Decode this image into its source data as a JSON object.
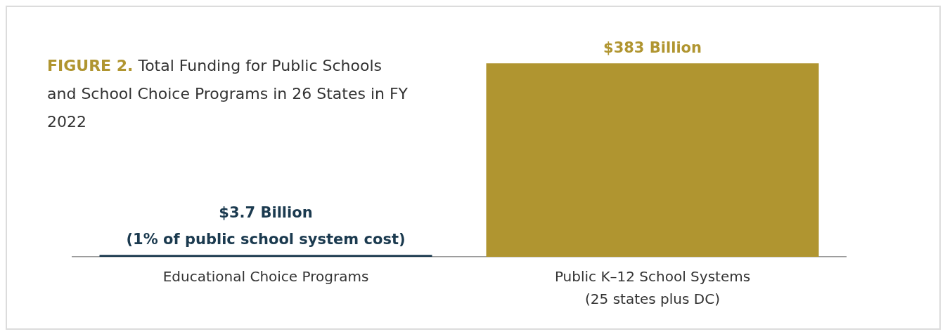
{
  "chart_data": {
    "type": "bar",
    "title": "FIGURE 2.",
    "subtitle": "Total Funding for Public Schools and School Choice Programs in 26 States in FY 2022",
    "categories": [
      "Educational Choice Programs",
      "Public K–12 School Systems\n(25 states plus DC)"
    ],
    "values": [
      3.7,
      383
    ],
    "colors": [
      "#1b3a4f",
      "#b09530"
    ],
    "value_labels": [
      "$3.7 Billion\n(1% of public school system cost)",
      "$383 Billion"
    ],
    "grid": false,
    "legend": false
  }
}
